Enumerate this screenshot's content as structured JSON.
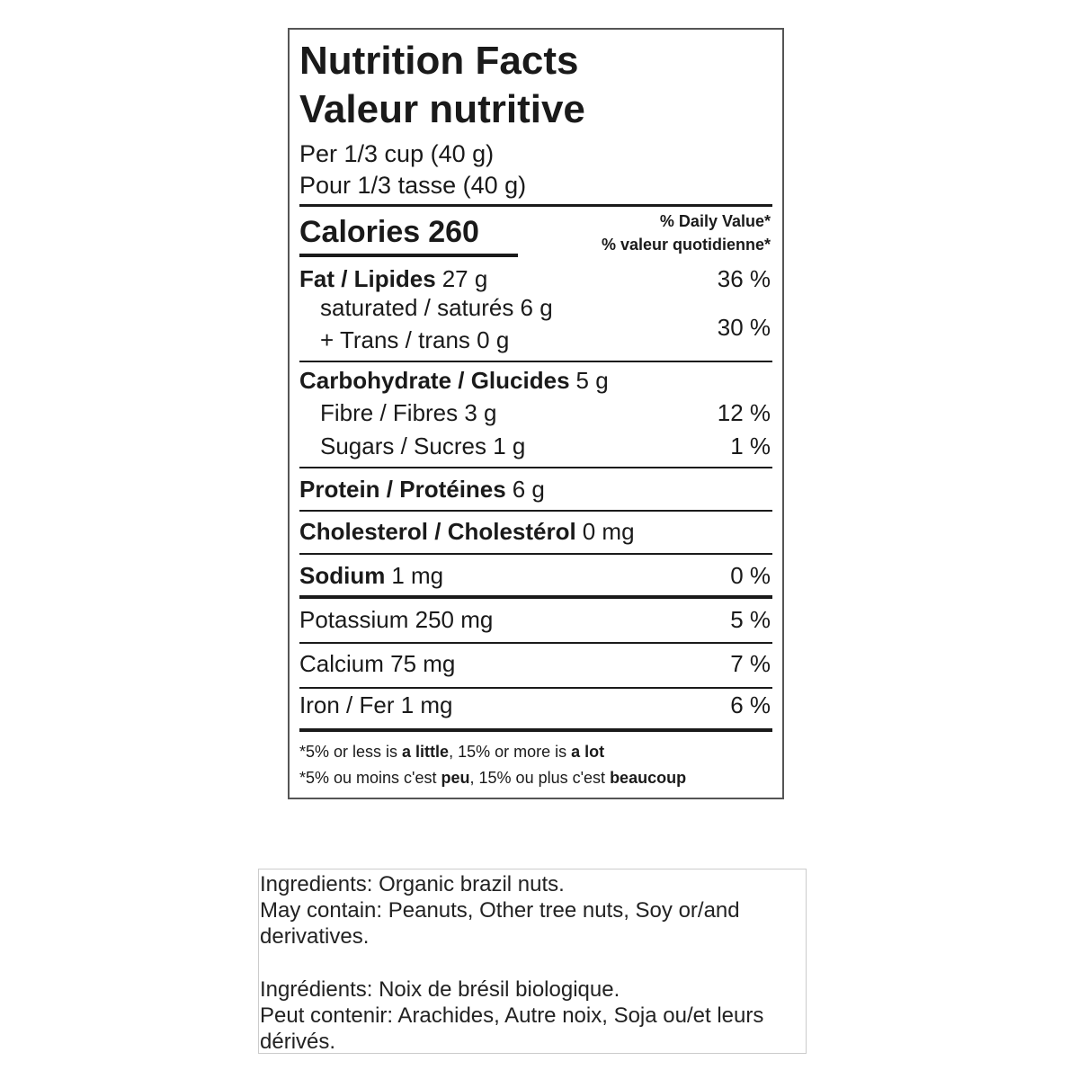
{
  "label": {
    "title_en": "Nutrition Facts",
    "title_fr": "Valeur nutritive",
    "serving_en": "Per 1/3 cup (40 g)",
    "serving_fr": "Pour 1/3 tasse (40 g)",
    "calories": {
      "name": "Calories",
      "amount": "260"
    },
    "dv_en": "% Daily Value*",
    "dv_fr": "% valeur quotidienne*",
    "fat": {
      "name": "Fat / Lipides",
      "amount": "27 g",
      "dv": "36 %"
    },
    "saturated": "saturated / saturés 6 g",
    "trans": "+ Trans / trans 0 g",
    "saturated_trans_dv": "30 %",
    "carbohydrate": {
      "name": "Carbohydrate / Glucides",
      "amount": "5 g"
    },
    "fibre": {
      "name": "Fibre / Fibres 3 g",
      "dv": "12 %"
    },
    "sugars": {
      "name": "Sugars / Sucres 1 g",
      "dv": "1 %"
    },
    "protein": {
      "name": "Protein / Protéines",
      "amount": "6 g"
    },
    "cholesterol": {
      "name": "Cholesterol / Cholestérol",
      "amount": "0 mg"
    },
    "sodium": {
      "name": "Sodium",
      "amount": "1 mg",
      "dv": "0 %"
    },
    "potassium": {
      "name": "Potassium 250 mg",
      "dv": "5 %"
    },
    "calcium": {
      "name": "Calcium 75 mg",
      "dv": "7 %"
    },
    "iron": {
      "name": "Iron / Fer 1 mg",
      "dv": "6 %"
    },
    "footnote_en": [
      {
        "text": "*5% or less is ",
        "bold": false
      },
      {
        "text": "a little",
        "bold": true
      },
      {
        "text": ", 15% or more is ",
        "bold": false
      },
      {
        "text": "a lot",
        "bold": true
      }
    ],
    "footnote_fr": [
      {
        "text": "*5% ou moins c'est ",
        "bold": false
      },
      {
        "text": "peu",
        "bold": true
      },
      {
        "text": ", 15% ou plus c'est ",
        "bold": false
      },
      {
        "text": "beaucoup",
        "bold": true
      }
    ]
  },
  "ingredients": {
    "en": [
      "Ingredients: Organic brazil nuts.",
      "May contain: Peanuts, Other tree nuts, Soy or/and derivatives."
    ],
    "fr": [
      "Ingrédients: Noix de brésil biologique.",
      "Peut contenir: Arachides, Autre noix, Soja ou/et leurs dérivés."
    ]
  }
}
